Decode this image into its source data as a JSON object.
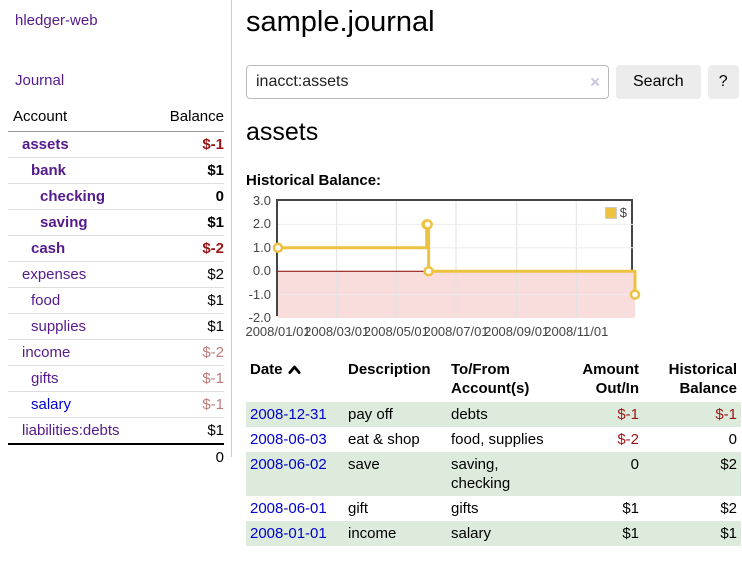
{
  "sidebar": {
    "brand": "hledger-web",
    "nav": [
      {
        "label": "Journal"
      }
    ],
    "accounts_table": {
      "header": {
        "account": "Account",
        "balance": "Balance"
      },
      "rows": [
        {
          "name": "assets",
          "balance": "$-1",
          "indent": 1,
          "bold": true,
          "balance_style": "neg-strong",
          "link_style": "purple"
        },
        {
          "name": "bank",
          "balance": "$1",
          "indent": 2,
          "bold": true,
          "balance_style": "plain",
          "link_style": "purple"
        },
        {
          "name": "checking",
          "balance": "0",
          "indent": 3,
          "bold": true,
          "balance_style": "plain",
          "link_style": "purple"
        },
        {
          "name": "saving",
          "balance": "$1",
          "indent": 3,
          "bold": true,
          "balance_style": "plain",
          "link_style": "purple"
        },
        {
          "name": "cash",
          "balance": "$-2",
          "indent": 2,
          "bold": true,
          "balance_style": "neg-strong",
          "link_style": "purple"
        },
        {
          "name": "expenses",
          "balance": "$2",
          "indent": 1,
          "bold": false,
          "balance_style": "plain",
          "link_style": "purple"
        },
        {
          "name": "food",
          "balance": "$1",
          "indent": 2,
          "bold": false,
          "balance_style": "plain",
          "link_style": "purple"
        },
        {
          "name": "supplies",
          "balance": "$1",
          "indent": 2,
          "bold": false,
          "balance_style": "plain",
          "link_style": "purple"
        },
        {
          "name": "income",
          "balance": "$-2",
          "indent": 1,
          "bold": false,
          "balance_style": "neg-muted",
          "link_style": "purple"
        },
        {
          "name": "gifts",
          "balance": "$-1",
          "indent": 2,
          "bold": false,
          "balance_style": "neg-muted",
          "link_style": "purple"
        },
        {
          "name": "salary",
          "balance": "$-1",
          "indent": 2,
          "bold": false,
          "balance_style": "neg-muted",
          "link_style": "blue"
        },
        {
          "name": "liabilities:debts",
          "balance": "$1",
          "indent": 1,
          "bold": false,
          "balance_style": "plain",
          "link_style": "purple"
        }
      ],
      "total": "0"
    }
  },
  "header": {
    "title": "sample.journal"
  },
  "search": {
    "value": "inacct:assets",
    "clear_icon": "×",
    "search_button": "Search",
    "help_button": "?"
  },
  "account_page": {
    "title": "assets",
    "chart_title": "Historical Balance:"
  },
  "chart_data": {
    "type": "line",
    "step": true,
    "title": "Historical Balance",
    "legend": {
      "label": "$",
      "position": "top-right",
      "color": "#edc240"
    },
    "x_range": [
      "2008-01-01",
      "2008-12-31"
    ],
    "y_range": [
      -2.0,
      3.0
    ],
    "y_ticks": [
      "3.0",
      "2.0",
      "1.0",
      "0.0",
      "-1.0",
      "-2.0"
    ],
    "x_ticks": [
      "2008/01/01",
      "2008/03/01",
      "2008/05/01",
      "2008/07/01",
      "2008/09/01",
      "2008/11/01"
    ],
    "series": [
      {
        "name": "$",
        "color": "#edc240",
        "points": [
          {
            "date": "2008-01-01",
            "value": 1
          },
          {
            "date": "2008-06-01",
            "value": 2
          },
          {
            "date": "2008-06-02",
            "value": 2
          },
          {
            "date": "2008-06-03",
            "value": 0
          },
          {
            "date": "2008-12-31",
            "value": -1
          }
        ]
      }
    ],
    "negative_region_color": "#f9dcdc",
    "zero_line_color": "#8b0000",
    "grid": true
  },
  "register": {
    "columns": [
      {
        "label": "Date",
        "sort": "asc",
        "align": "left"
      },
      {
        "label": "Description",
        "align": "left"
      },
      {
        "label": "To/From Account(s)",
        "align": "left"
      },
      {
        "label": "Amount Out/In",
        "align": "right"
      },
      {
        "label": "Historical Balance",
        "align": "right"
      }
    ],
    "rows": [
      {
        "date": "2008-12-31",
        "description": "pay off",
        "accounts": "debts",
        "amount": "$-1",
        "amount_neg": true,
        "balance": "$-1",
        "balance_neg": true,
        "shaded": true
      },
      {
        "date": "2008-06-03",
        "description": "eat & shop",
        "accounts": "food, supplies",
        "amount": "$-2",
        "amount_neg": true,
        "balance": "0",
        "balance_neg": false,
        "shaded": false
      },
      {
        "date": "2008-06-02",
        "description": "save",
        "accounts": "saving, checking",
        "amount": "0",
        "amount_neg": false,
        "balance": "$2",
        "balance_neg": false,
        "shaded": true
      },
      {
        "date": "2008-06-01",
        "description": "gift",
        "accounts": "gifts",
        "amount": "$1",
        "amount_neg": false,
        "balance": "$2",
        "balance_neg": false,
        "shaded": false
      },
      {
        "date": "2008-01-01",
        "description": "income",
        "accounts": "salary",
        "amount": "$1",
        "amount_neg": false,
        "balance": "$1",
        "balance_neg": false,
        "shaded": true
      }
    ]
  },
  "colors": {
    "link_purple": "#551a8b",
    "link_blue": "#0000cc",
    "negative_strong": "#9c1616",
    "negative_muted": "#c07b7b",
    "row_shade_green": "#dcebdc",
    "chart_series": "#edc240"
  }
}
